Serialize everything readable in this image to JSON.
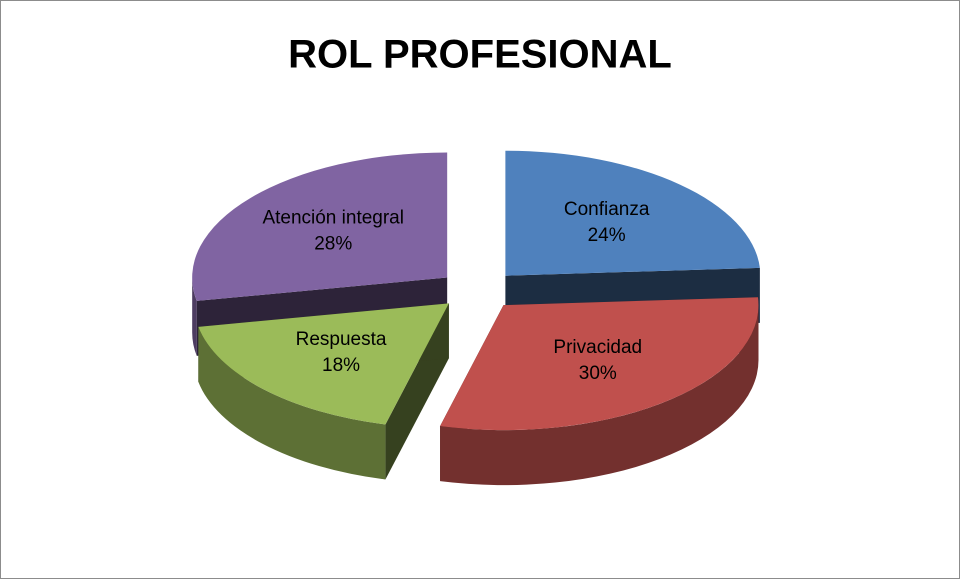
{
  "chart_data": {
    "type": "pie",
    "title": "ROL PROFESIONAL",
    "categories": [
      "Confianza",
      "Privacidad",
      "Respuesta",
      "Atención integral"
    ],
    "values": [
      24,
      30,
      18,
      28
    ],
    "value_labels": [
      "24%",
      "30%",
      "18%",
      "28%"
    ],
    "colors": [
      "#4f81bd",
      "#c0504d",
      "#9bbb59",
      "#8064a2"
    ],
    "exploded": true,
    "three_d": true
  }
}
